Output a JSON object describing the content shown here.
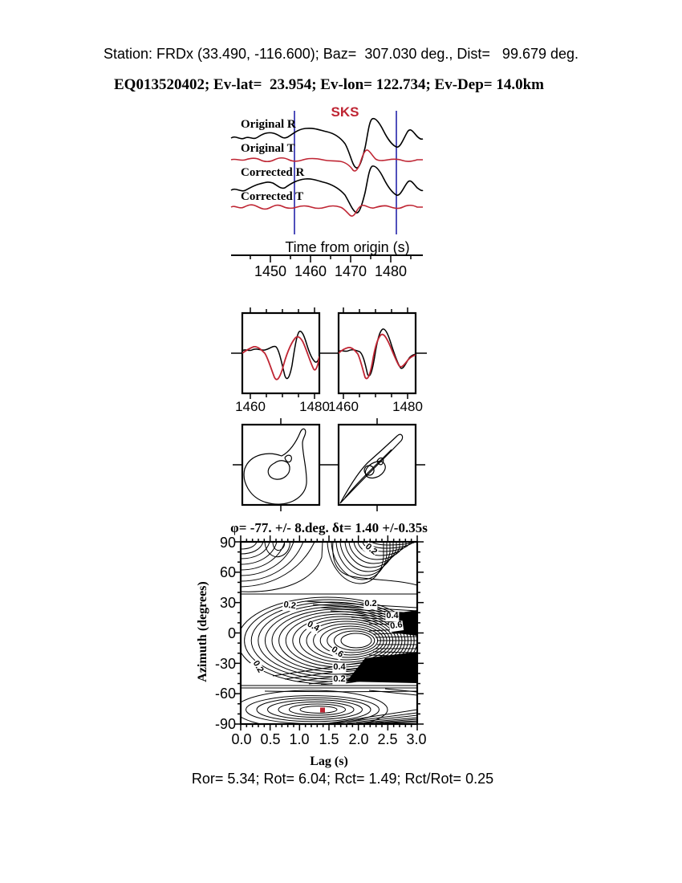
{
  "titles": {
    "line1": "Station: FRDx (33.490, -116.600); Baz=  307.030 deg., Dist=   99.679 deg.",
    "line2": "EQ013520402; Ev-lat=  23.954; Ev-lon= 122.734; Ev-Dep= 14.0km"
  },
  "metadata": {
    "station": "FRDx",
    "station_lat": 33.49,
    "station_lon": -116.6,
    "backazimuth_deg": 307.03,
    "distance_deg": 99.679,
    "event_id": "EQ013520402",
    "event_lat": 23.954,
    "event_lon": 122.734,
    "event_depth_km": 14.0
  },
  "colors": {
    "red": "#bf2533",
    "blue": "#2323aa",
    "ink": "#000000",
    "paper": "#ffffff"
  },
  "waveforms": {
    "phase": "SKS",
    "traces": [
      "Original R",
      "Original T",
      "Corrected R",
      "Corrected T"
    ],
    "axis_label": "Time from origin (s)",
    "ticks": [
      "1450",
      "1460",
      "1470",
      "1480"
    ]
  },
  "comparison": {
    "ticks": [
      "1460",
      "1480",
      "1460",
      "1480"
    ]
  },
  "contour": {
    "title": "φ= -77. +/- 8.deg. δt= 1.40 +/-0.35s",
    "ylabel": "Azimuth (degrees)",
    "xlabel": "Lag (s)",
    "yticks": [
      "90",
      "60",
      "30",
      "0",
      "-30",
      "-60",
      "-90"
    ],
    "xticks": [
      "0.0",
      "0.5",
      "1.0",
      "1.5",
      "2.0",
      "2.5",
      "3.0"
    ],
    "labels": [
      "0.2",
      "0.2",
      "0.2",
      "0.4",
      "0.6",
      "0.4",
      "0.6",
      "0.4",
      "0.2",
      "0.2"
    ]
  },
  "footer": {
    "line": "Ror= 5.34; Rot= 6.04; Rct= 1.49; Rct/Rot= 0.25"
  },
  "chart_data": [
    {
      "type": "line",
      "panel": "seismogram-window",
      "xlabel": "Time from origin (s)",
      "xlim": [
        1440,
        1488
      ],
      "x_ticks": [
        1450,
        1460,
        1470,
        1480
      ],
      "window_lines_x": [
        1456,
        1481.5
      ],
      "phase_annotation": {
        "text": "SKS",
        "x": 1470,
        "color": "red"
      },
      "series": [
        {
          "name": "Original R",
          "color": "black",
          "shape": "large SKS pulse: broad swell, deep trough near 1470, strong peak ~1474"
        },
        {
          "name": "Original T",
          "color": "red",
          "shape": "low amplitude, small trough-peak pair at SKS arrival"
        },
        {
          "name": "Corrected R",
          "color": "black",
          "shape": "same pulse as Original R after anisotropy correction"
        },
        {
          "name": "Corrected T",
          "color": "red",
          "shape": "near-flat after correction, minor dip at arrival"
        }
      ]
    },
    {
      "type": "line",
      "panel": "fast-slow-comparison-uncorrected",
      "x_ticks": [
        1460,
        1480
      ],
      "series": [
        {
          "name": "component 1",
          "color": "black"
        },
        {
          "name": "component 2 (shifted)",
          "color": "red"
        }
      ],
      "note": "red trace leads black; poor match"
    },
    {
      "type": "line",
      "panel": "fast-slow-comparison-corrected",
      "x_ticks": [
        1460,
        1480
      ],
      "series": [
        {
          "name": "component 1",
          "color": "black"
        },
        {
          "name": "component 2",
          "color": "red"
        }
      ],
      "note": "traces nearly overlap after lag correction"
    },
    {
      "type": "line",
      "panel": "particle-motion-original",
      "note": "elliptical looping particle motion"
    },
    {
      "type": "line",
      "panel": "particle-motion-corrected",
      "note": "linearized diagonal particle motion"
    },
    {
      "type": "contour",
      "panel": "splitting-error-surface",
      "title": "φ= -77. +/- 8.deg. δt= 1.40 +/-0.35s",
      "xlabel": "Lag (s)",
      "ylabel": "Azimuth (degrees)",
      "xlim": [
        0.0,
        3.0
      ],
      "ylim": [
        -90,
        90
      ],
      "x_ticks": [
        0.0,
        0.5,
        1.0,
        1.5,
        2.0,
        2.5,
        3.0
      ],
      "y_ticks": [
        90,
        60,
        30,
        0,
        -30,
        -60,
        -90
      ],
      "labeled_contour_levels": [
        0.2,
        0.4,
        0.6
      ],
      "best_solution": {
        "lag_s": 1.4,
        "azimuth_deg": -77,
        "marker": "red-square"
      },
      "result": {
        "phi_deg": -77,
        "phi_err_deg": 8,
        "dt_s": 1.4,
        "dt_err_s": 0.35
      }
    },
    {
      "type": "table",
      "panel": "quality-statistics",
      "values": {
        "Ror": 5.34,
        "Rot": 6.04,
        "Rct": 1.49,
        "Rct/Rot": 0.25
      }
    }
  ]
}
